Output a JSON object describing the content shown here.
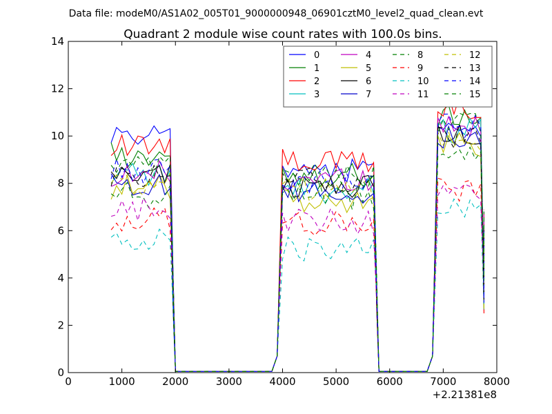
{
  "header": {
    "data_file_text": "Data file: modeM0/AS1A02_005T01_9000000948_06901cztM0_level2_quad_clean.evt"
  },
  "chart_data": {
    "type": "line",
    "title": "Quadrant 2 module wise count rates with 100.0s bins.",
    "xlabel": "",
    "ylabel": "",
    "x_offset_label": "+2.21381e8",
    "xlim": [
      0,
      8000
    ],
    "ylim": [
      0,
      14
    ],
    "xticks": [
      0,
      1000,
      2000,
      3000,
      4000,
      5000,
      6000,
      7000,
      8000
    ],
    "yticks": [
      0,
      2,
      4,
      6,
      8,
      10,
      12,
      14
    ],
    "grid": false,
    "legend_position": "top-right",
    "legend_columns": 4,
    "segments": [
      {
        "x_start": 800,
        "x_end": 1900,
        "step": 100
      },
      {
        "x_start": 1900,
        "x_end": 3900,
        "step": 100,
        "zero": true
      },
      {
        "x_start": 3900,
        "x_end": 5700,
        "step": 100
      },
      {
        "x_start": 5700,
        "x_end": 6800,
        "step": 100,
        "zero": true
      },
      {
        "x_start": 6800,
        "x_end": 7700,
        "step": 100
      }
    ],
    "series": [
      {
        "name": "0",
        "color": "#0000ff",
        "style": "solid",
        "level": [
          9.9,
          8.6,
          10.5
        ]
      },
      {
        "name": "1",
        "color": "#007f00",
        "style": "solid",
        "level": [
          9.2,
          8.4,
          10.8
        ]
      },
      {
        "name": "2",
        "color": "#ff0000",
        "style": "solid",
        "level": [
          9.5,
          8.9,
          11.2
        ]
      },
      {
        "name": "3",
        "color": "#00bfbf",
        "style": "solid",
        "level": [
          8.3,
          7.7,
          10.2
        ]
      },
      {
        "name": "4",
        "color": "#bf00bf",
        "style": "solid",
        "level": [
          8.4,
          8.2,
          10.4
        ]
      },
      {
        "name": "5",
        "color": "#bfbf00",
        "style": "solid",
        "level": [
          7.8,
          7.2,
          9.6
        ]
      },
      {
        "name": "6",
        "color": "#000000",
        "style": "solid",
        "level": [
          8.4,
          7.9,
          10.0
        ]
      },
      {
        "name": "7",
        "color": "#0000cc",
        "style": "solid",
        "level": [
          8.0,
          7.6,
          10.0
        ]
      },
      {
        "name": "8",
        "color": "#007f00",
        "style": "dashed",
        "level": [
          7.5,
          7.4,
          9.4
        ]
      },
      {
        "name": "9",
        "color": "#ff0000",
        "style": "dashed",
        "level": [
          6.5,
          6.3,
          7.8
        ]
      },
      {
        "name": "10",
        "color": "#00bfbf",
        "style": "dashed",
        "level": [
          5.6,
          5.2,
          6.9
        ]
      },
      {
        "name": "11",
        "color": "#bf00bf",
        "style": "dashed",
        "level": [
          6.9,
          6.4,
          7.6
        ]
      },
      {
        "name": "12",
        "color": "#bfbf00",
        "style": "dashed",
        "level": [
          8.0,
          7.7,
          9.8
        ]
      },
      {
        "name": "13",
        "color": "#000000",
        "style": "dashed",
        "level": [
          8.3,
          8.1,
          10.0
        ]
      },
      {
        "name": "14",
        "color": "#0000ff",
        "style": "dashed",
        "level": [
          8.5,
          8.0,
          10.4
        ]
      },
      {
        "name": "15",
        "color": "#007f00",
        "style": "dashed",
        "level": [
          8.6,
          8.3,
          10.6
        ]
      }
    ]
  }
}
